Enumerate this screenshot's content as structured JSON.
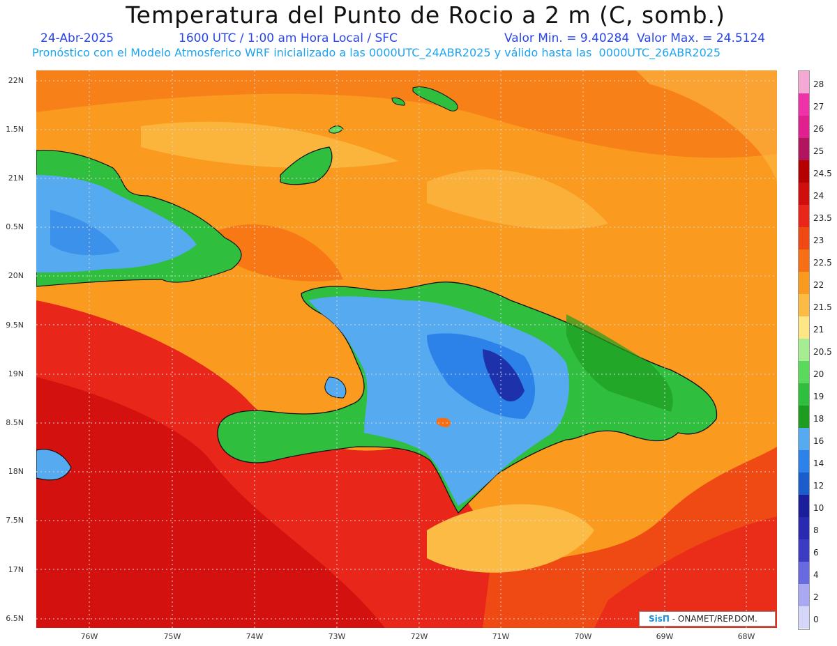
{
  "header": {
    "title": "Temperatura del Punto de Rocio a 2 m (C, somb.)",
    "date": "24-Abr-2025",
    "time": "1600 UTC / 1:00 am Hora Local / SFC",
    "stats": "Valor Min. = 9.40284  Valor Max. = 24.5124",
    "model_line": "Pronóstico con el Modelo Atmosferico WRF inicializado a las 0000UTC_24ABR2025 y válido hasta las  0000UTC_26ABR2025"
  },
  "map": {
    "lat_ticks": [
      "22N",
      "1.5N",
      "21N",
      "0.5N",
      "20N",
      "9.5N",
      "19N",
      "8.5N",
      "18N",
      "7.5N",
      "17N",
      "6.5N"
    ],
    "lon_ticks": [
      "76W",
      "75W",
      "74W",
      "73W",
      "72W",
      "71W",
      "70W",
      "69W",
      "68W"
    ],
    "credit_logo": "SisΠ",
    "credit_text": " - ONAMET/REP.DOM."
  },
  "legend": {
    "levels": [
      "28",
      "27",
      "26",
      "25",
      "24.5",
      "24",
      "23.5",
      "23",
      "22.5",
      "22",
      "21.5",
      "21",
      "20.5",
      "20",
      "19",
      "18",
      "16",
      "14",
      "12",
      "10",
      "8",
      "6",
      "4",
      "2",
      "0"
    ],
    "colors": [
      "#f4a9d4",
      "#ee33a8",
      "#e0208f",
      "#b0155e",
      "#b40000",
      "#cf0e0e",
      "#e8261a",
      "#f04a14",
      "#f76f14",
      "#fa9a1e",
      "#fbbb45",
      "#fde685",
      "#a6ec92",
      "#5ad95a",
      "#2fbe3d",
      "#1d9c20",
      "#56aaf0",
      "#2c82e8",
      "#1b5ecb",
      "#1a1e9a",
      "#2a2ab0",
      "#3b3bc4",
      "#6a6ae0",
      "#a9a9f2",
      "#d6d6f8"
    ],
    "bottom_color": "#ffffff"
  }
}
